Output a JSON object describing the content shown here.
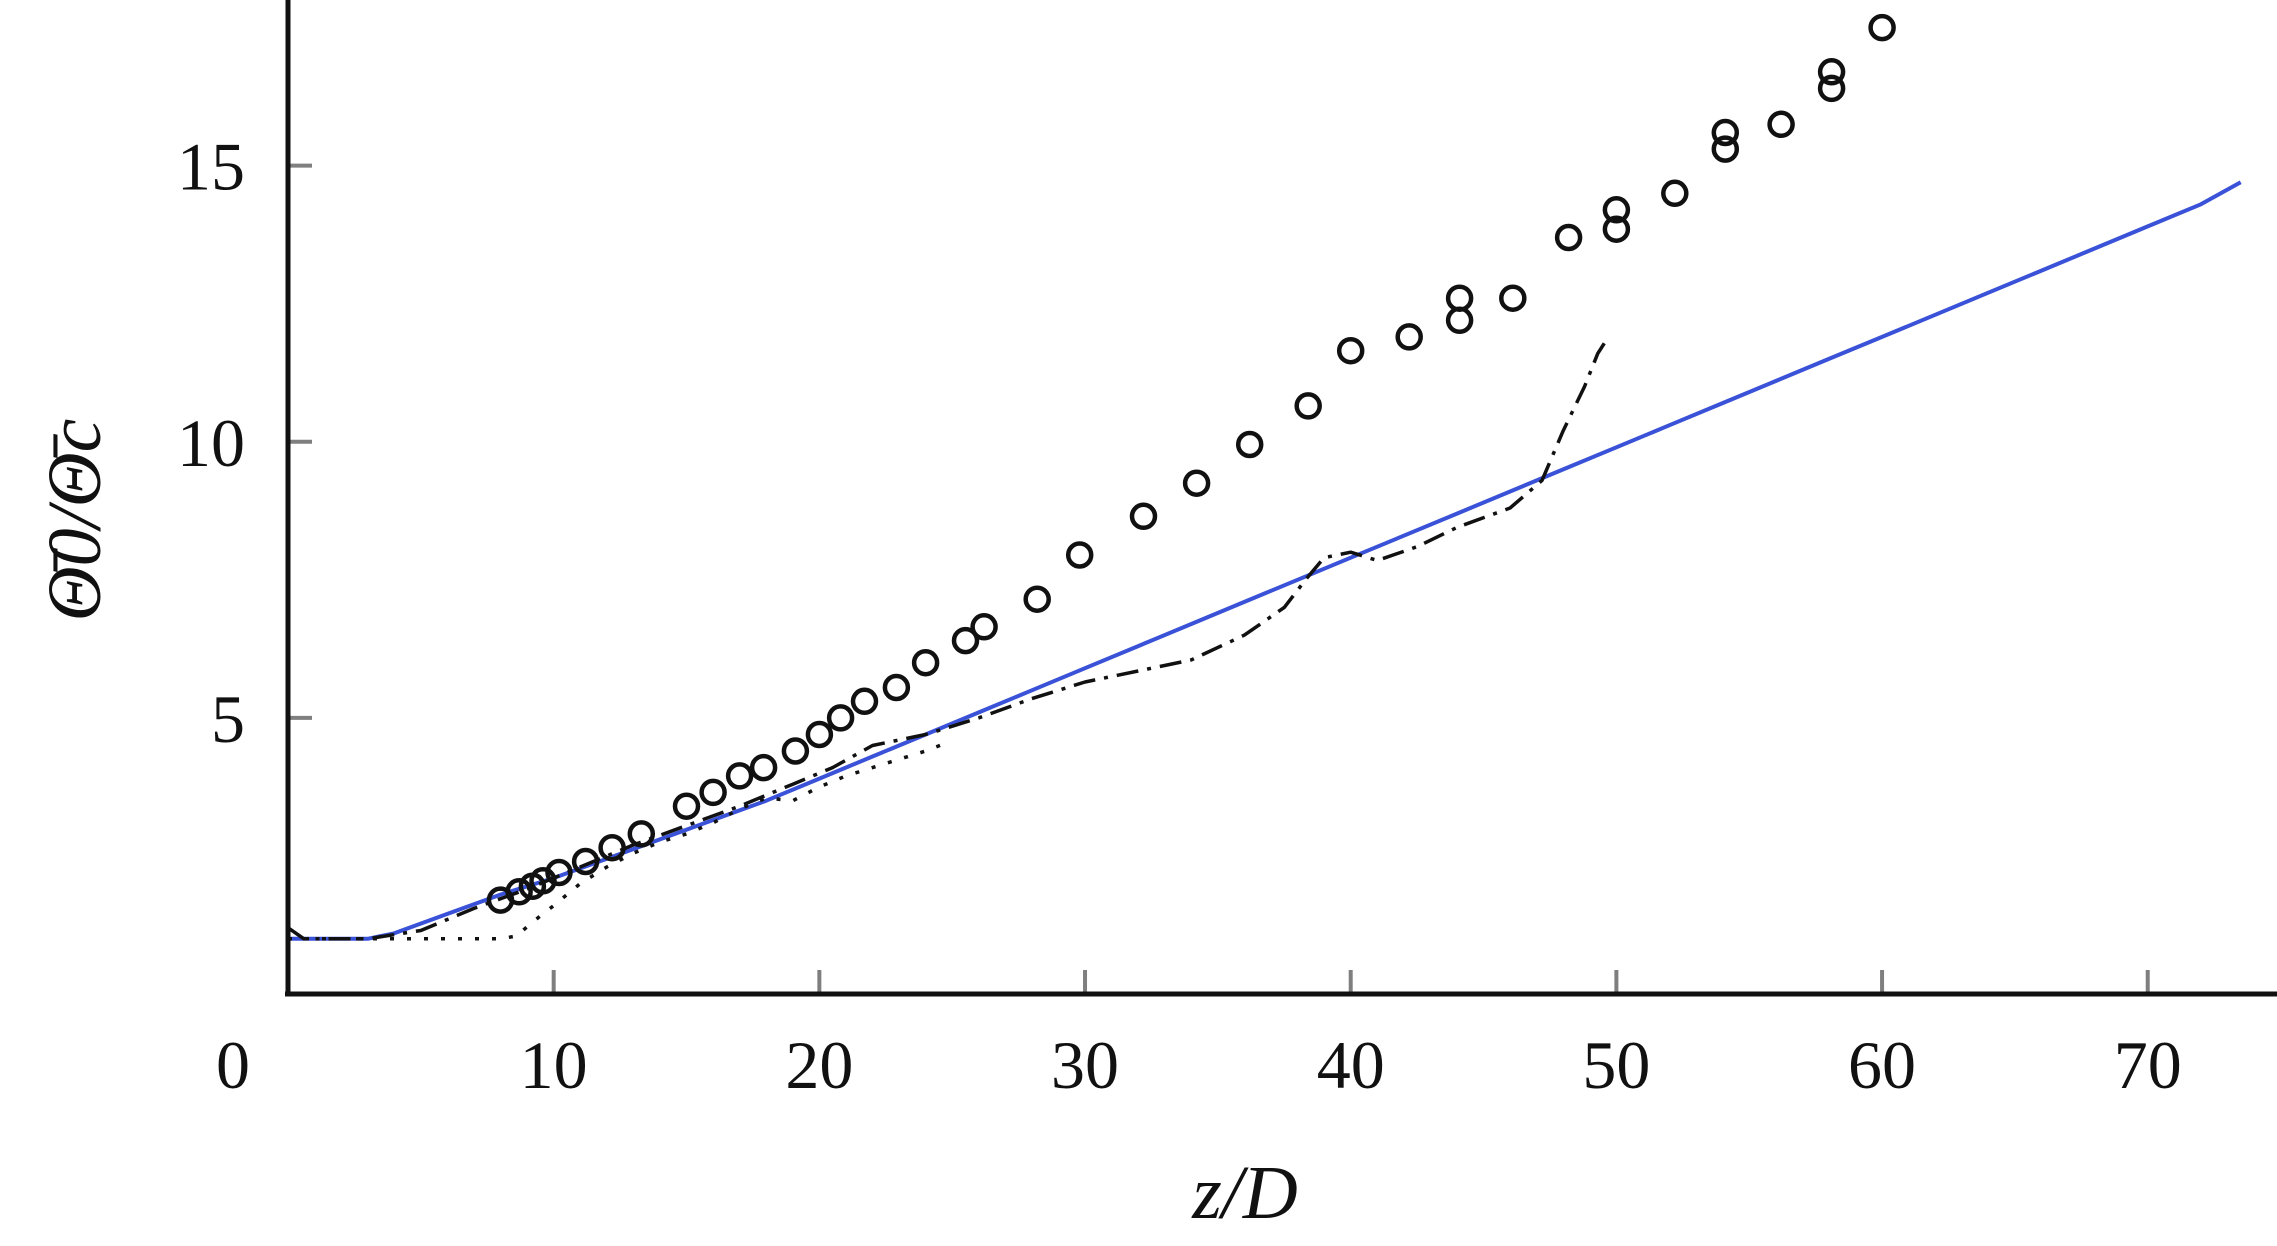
{
  "chart_data": {
    "type": "line",
    "xlabel": "z/D",
    "ylabel": "Θ̄0/Θ̄c",
    "xlim": [
      0,
      74
    ],
    "ylim": [
      0,
      18
    ],
    "x_ticks": [
      0,
      10,
      20,
      30,
      40,
      50,
      60,
      70
    ],
    "x_tick_labels": [
      "0",
      "10",
      "20",
      "30",
      "40",
      "50",
      "60",
      "70"
    ],
    "y_ticks": [
      5,
      10,
      15
    ],
    "y_tick_labels": [
      "5",
      "10",
      "15"
    ],
    "grid": false,
    "legend": "none",
    "colors": {
      "solid_line": "#3a52d8",
      "markers": "#111111",
      "dashed_lines": "#111111",
      "axes": "#111111",
      "ticks": "#7f7f7f"
    },
    "series": [
      {
        "style": "circle-markers",
        "x": [
          8,
          8.7,
          9.2,
          9.6,
          10.2,
          11.2,
          12.2,
          13.3,
          15,
          16,
          17,
          17.9,
          19.1,
          20,
          20.8,
          21.7,
          22.9,
          24,
          25.5,
          26.2,
          28.2,
          29.8,
          32.2,
          34.2,
          36.2,
          38.4,
          40,
          42.2,
          44.1,
          44.1,
          46.1,
          48.2,
          50,
          50,
          52.2,
          54.1,
          54.1,
          56.2,
          58.1,
          58.1,
          60
        ],
        "y": [
          1.7,
          1.85,
          1.95,
          2.05,
          2.2,
          2.4,
          2.65,
          2.9,
          3.4,
          3.65,
          3.95,
          4.1,
          4.4,
          4.7,
          5.0,
          5.3,
          5.55,
          6.0,
          6.4,
          6.65,
          7.15,
          7.95,
          8.65,
          9.25,
          9.95,
          10.65,
          11.65,
          11.9,
          12.2,
          12.6,
          12.6,
          13.7,
          13.85,
          14.2,
          14.5,
          15.3,
          15.6,
          15.75,
          16.4,
          16.7,
          17.5
        ]
      },
      {
        "style": "solid",
        "x": [
          0,
          3,
          4,
          6,
          8,
          10,
          12,
          14,
          16,
          18,
          20,
          22,
          24,
          26,
          28,
          30,
          32,
          34,
          36,
          38,
          40,
          42,
          44,
          46,
          48,
          50,
          52,
          54,
          56,
          58,
          60,
          62,
          64,
          66,
          68,
          70,
          72,
          73.5
        ],
        "y": [
          1.0,
          1.0,
          1.1,
          1.45,
          1.8,
          2.1,
          2.45,
          2.8,
          3.15,
          3.5,
          3.9,
          4.3,
          4.7,
          5.1,
          5.5,
          5.9,
          6.3,
          6.7,
          7.1,
          7.5,
          7.9,
          8.3,
          8.7,
          9.1,
          9.5,
          9.9,
          10.3,
          10.7,
          11.1,
          11.5,
          11.9,
          12.3,
          12.7,
          13.1,
          13.5,
          13.9,
          14.3,
          14.7
        ]
      },
      {
        "style": "dash-dot",
        "x": [
          0,
          0.3,
          0.6,
          1,
          3,
          5,
          7,
          9,
          11,
          13,
          15,
          17,
          19,
          20.5,
          22,
          24,
          26,
          28,
          30,
          32,
          34,
          36,
          37.5,
          38.3,
          39,
          40,
          41,
          42.5,
          44,
          46,
          47.2,
          48,
          48.8,
          49.3,
          49.7
        ],
        "y": [
          1.2,
          1.1,
          1.0,
          1.0,
          1.0,
          1.15,
          1.55,
          1.9,
          2.3,
          2.7,
          3.05,
          3.4,
          3.8,
          4.1,
          4.5,
          4.7,
          5.0,
          5.35,
          5.65,
          5.85,
          6.05,
          6.5,
          7.0,
          7.5,
          7.9,
          8.0,
          7.85,
          8.1,
          8.45,
          8.8,
          9.3,
          10.2,
          11.0,
          11.6,
          11.9
        ]
      },
      {
        "style": "dotted",
        "x": [
          0,
          2,
          4,
          6,
          8,
          8.6,
          9.2,
          10,
          11,
          12,
          13,
          14,
          15,
          16,
          17,
          18,
          19,
          20,
          21,
          22,
          23,
          24,
          24.8
        ],
        "y": [
          1.0,
          1.0,
          1.0,
          1.0,
          1.0,
          1.05,
          1.3,
          1.6,
          2.0,
          2.3,
          2.55,
          2.75,
          2.9,
          3.1,
          3.35,
          3.55,
          3.5,
          3.75,
          3.95,
          4.1,
          4.25,
          4.4,
          4.55
        ]
      }
    ]
  }
}
